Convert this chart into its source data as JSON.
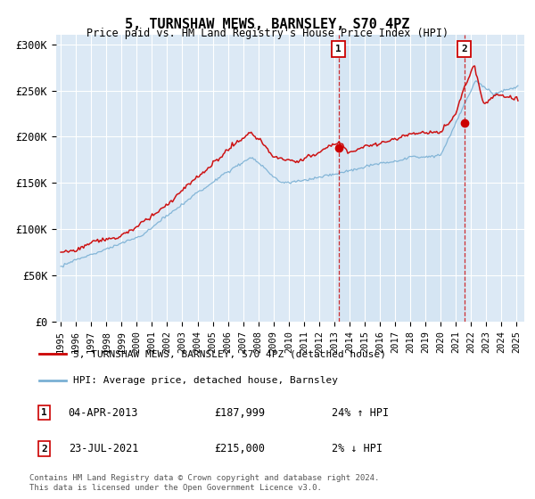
{
  "title": "5, TURNSHAW MEWS, BARNSLEY, S70 4PZ",
  "subtitle": "Price paid vs. HM Land Registry's House Price Index (HPI)",
  "bg_color": "#dce9f5",
  "ylim": [
    0,
    310000
  ],
  "yticks": [
    0,
    50000,
    100000,
    150000,
    200000,
    250000,
    300000
  ],
  "ytick_labels": [
    "£0",
    "£50K",
    "£100K",
    "£150K",
    "£200K",
    "£250K",
    "£300K"
  ],
  "sale1_date": 2013.27,
  "sale1_price": 187999,
  "sale2_date": 2021.55,
  "sale2_price": 215000,
  "red_line_color": "#cc0000",
  "blue_line_color": "#7ab0d4",
  "shade_color": "#c8dff0",
  "annotation_box_color": "#cc0000",
  "legend_line1": "5, TURNSHAW MEWS, BARNSLEY, S70 4PZ (detached house)",
  "legend_line2": "HPI: Average price, detached house, Barnsley",
  "footer": "Contains HM Land Registry data © Crown copyright and database right 2024.\nThis data is licensed under the Open Government Licence v3.0."
}
